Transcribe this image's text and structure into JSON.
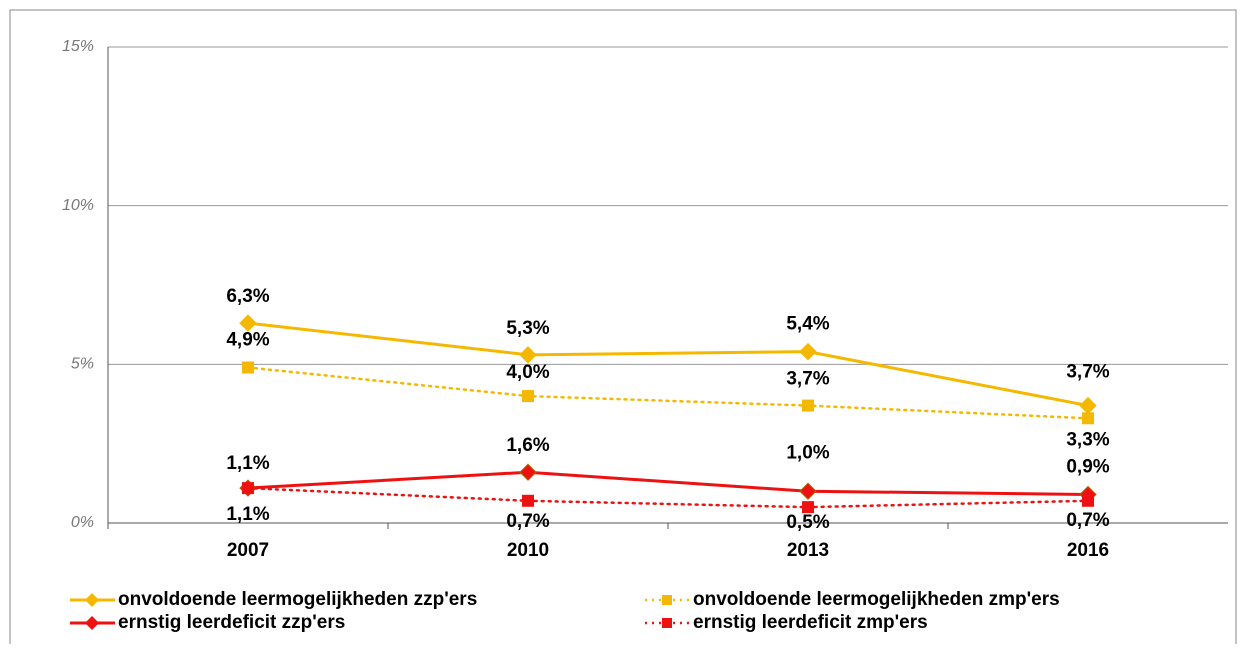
{
  "chart_data": {
    "type": "line",
    "categories": [
      "2007",
      "2010",
      "2013",
      "2016"
    ],
    "ylim": [
      0,
      15
    ],
    "yticks": [
      {
        "value": 0,
        "label": "0%"
      },
      {
        "value": 5,
        "label": "5%"
      },
      {
        "value": 10,
        "label": "10%"
      },
      {
        "value": 15,
        "label": "15%"
      }
    ],
    "grid": true,
    "legend": "bottom",
    "series": [
      {
        "name": "onvoldoende leermogelijkheden zzp'ers",
        "color": "#f5b800",
        "dash": "solid",
        "marker": "diamond",
        "values": [
          6.3,
          5.3,
          5.4,
          3.7
        ],
        "value_labels": [
          "6,3%",
          "5,3%",
          "5,4%",
          "3,7%"
        ]
      },
      {
        "name": "onvoldoende leermogelijkheden zmp'ers",
        "color": "#f5b800",
        "dash": "dotted",
        "marker": "square",
        "values": [
          4.9,
          4.0,
          3.7,
          3.3
        ],
        "value_labels": [
          "4,9%",
          "4,0%",
          "3,7%",
          "3,3%"
        ]
      },
      {
        "name": "ernstig leerdeficit zzp'ers",
        "color": "#ee1111",
        "dash": "solid",
        "marker": "diamond",
        "values": [
          1.1,
          1.6,
          1.0,
          0.9
        ],
        "value_labels": [
          "1,1%",
          "1,6%",
          "1,0%",
          "0,9%"
        ]
      },
      {
        "name": "ernstig leerdeficit zmp'ers",
        "color": "#ee1111",
        "dash": "dotted",
        "marker": "square",
        "values": [
          1.1,
          0.7,
          0.5,
          0.7
        ],
        "value_labels": [
          "1,1%",
          "0,7%",
          "0,5%",
          "0,7%"
        ]
      }
    ]
  }
}
